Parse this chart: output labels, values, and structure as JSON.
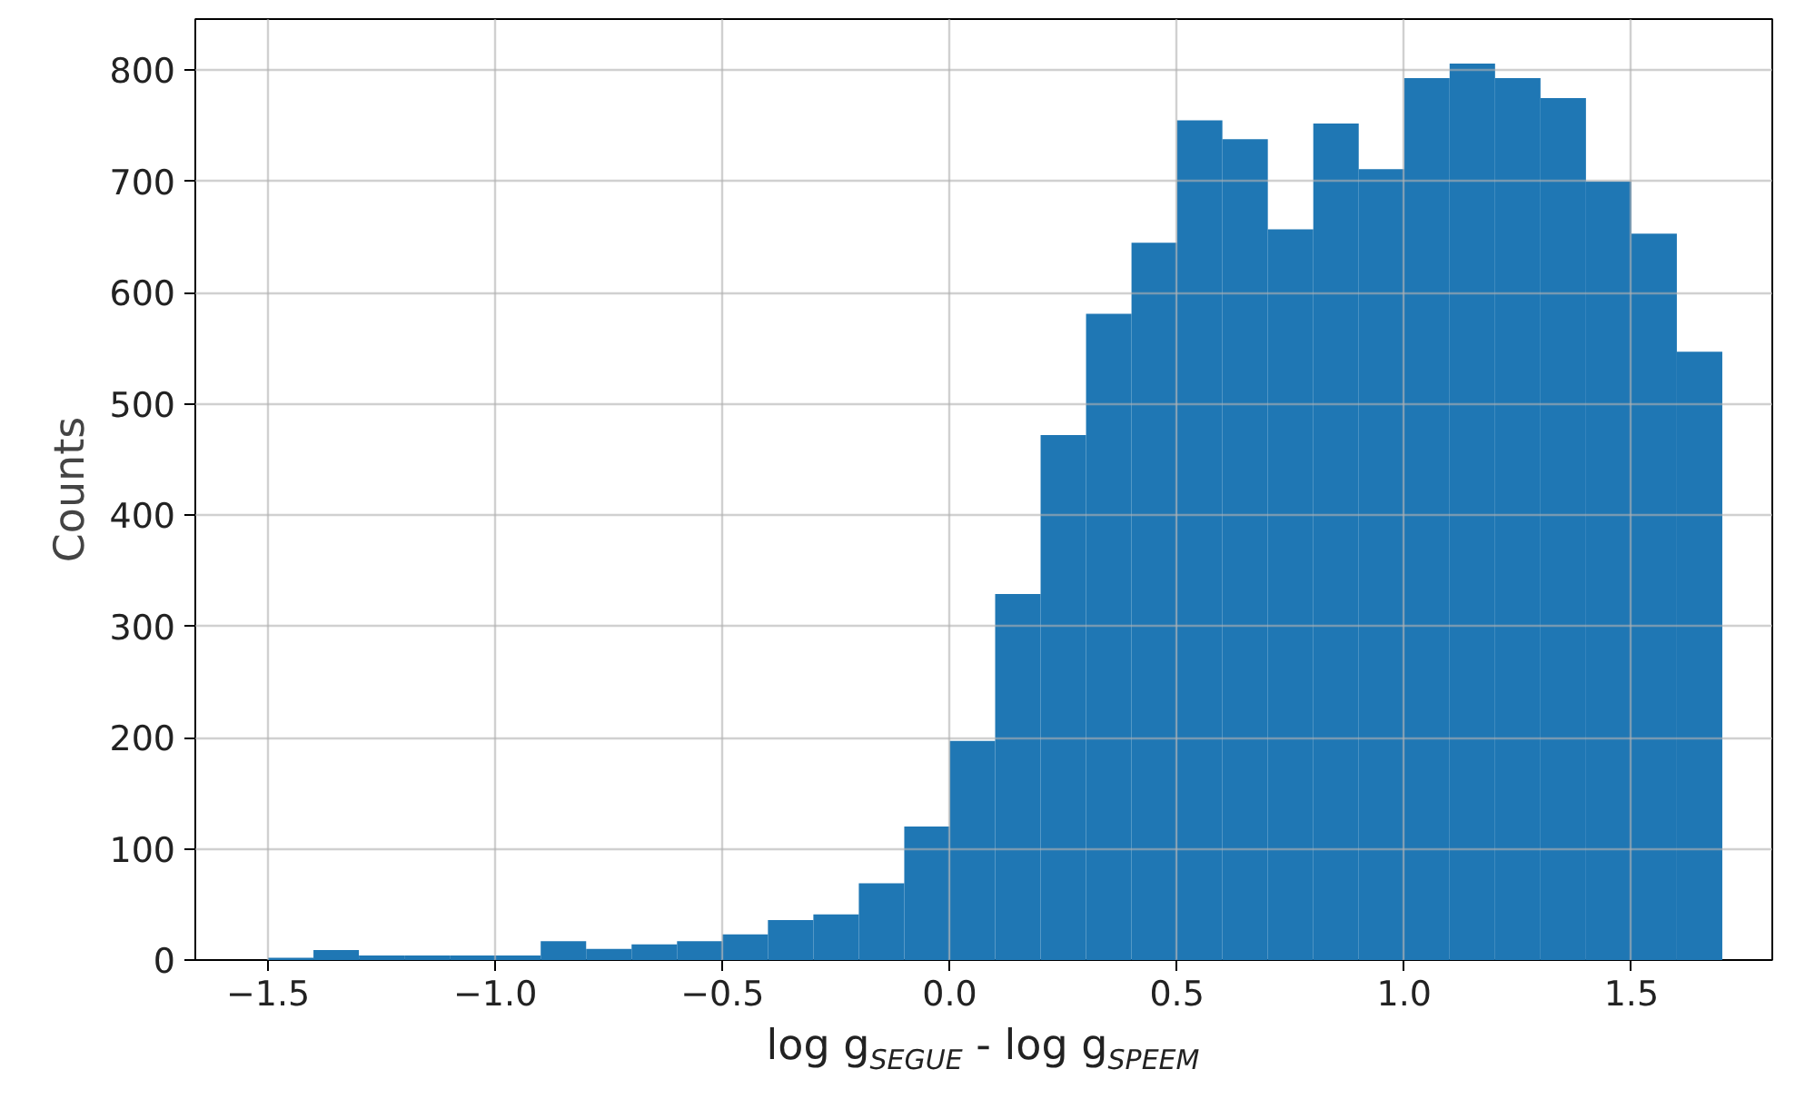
{
  "chart_data": {
    "type": "histogram",
    "xlabel": "log g$_{SEGUE}$ - log g$_{SPEEM}$",
    "ylabel": "Counts",
    "bins": [
      -1.5,
      -1.4,
      -1.3,
      -1.2,
      -1.1,
      -1.0,
      -0.9,
      -0.8,
      -0.7,
      -0.6,
      -0.5,
      -0.4,
      -0.3,
      -0.2,
      -0.1,
      0.0,
      0.1,
      0.2,
      0.3,
      0.4,
      0.5,
      0.6,
      0.7,
      0.8,
      0.9,
      1.0,
      1.1,
      1.2,
      1.3,
      1.4,
      1.5,
      1.6,
      1.7
    ],
    "values": [
      2,
      9,
      4,
      4,
      4,
      4,
      17,
      10,
      14,
      17,
      23,
      36,
      41,
      69,
      120,
      197,
      329,
      472,
      581,
      645,
      755,
      738,
      657,
      752,
      711,
      793,
      806,
      793,
      775,
      700,
      653,
      547
    ],
    "color": "#1f77b4",
    "xlim": [
      -1.66,
      1.81
    ],
    "ylim": [
      0,
      846
    ],
    "xticks": [
      {
        "value": -1.5,
        "label": "−1.5"
      },
      {
        "value": -1.0,
        "label": "−1.0"
      },
      {
        "value": -0.5,
        "label": "−0.5"
      },
      {
        "value": 0.0,
        "label": "0.0"
      },
      {
        "value": 0.5,
        "label": "0.5"
      },
      {
        "value": 1.0,
        "label": "1.0"
      },
      {
        "value": 1.5,
        "label": "1.5"
      }
    ],
    "yticks": [
      0,
      100,
      200,
      300,
      400,
      500,
      600,
      700,
      800
    ],
    "grid": true
  }
}
